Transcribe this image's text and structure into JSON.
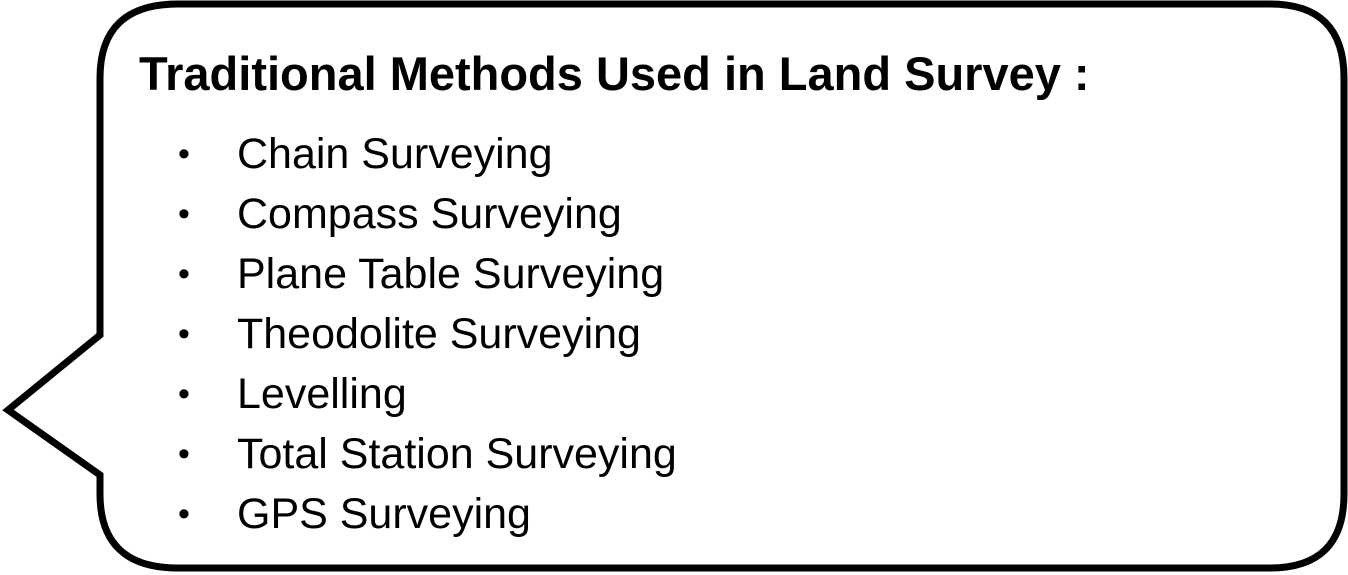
{
  "callout": {
    "title": "Traditional Methods Used in Land Survey :",
    "bullet_glyph": "•",
    "items": [
      "Chain Surveying",
      "Compass Surveying",
      "Plane Table Surveying",
      "Theodolite Surveying",
      "Levelling",
      "Total Station Surveying",
      "GPS Surveying"
    ]
  },
  "colors": {
    "background": "#ffffff",
    "stroke": "#000000",
    "text": "#000000"
  }
}
